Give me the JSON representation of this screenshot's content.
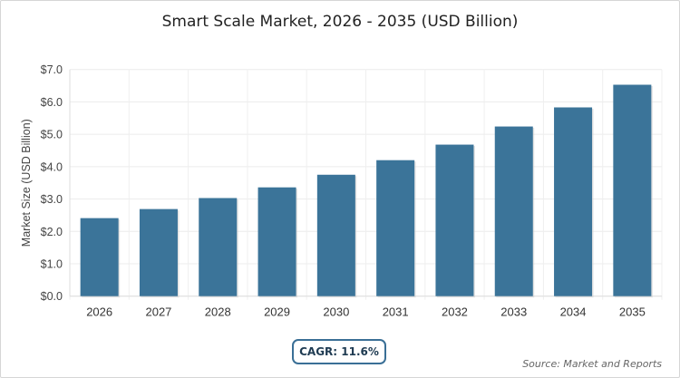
{
  "chart_data": {
    "type": "bar",
    "title": "Smart Scale Market, 2026 - 2035 (USD Billion)",
    "xlabel": "",
    "ylabel": "Market Size (USD Billion)",
    "categories": [
      "2026",
      "2027",
      "2028",
      "2029",
      "2030",
      "2031",
      "2032",
      "2033",
      "2034",
      "2035"
    ],
    "values": [
      2.41,
      2.69,
      3.03,
      3.36,
      3.75,
      4.2,
      4.68,
      5.24,
      5.83,
      6.53
    ],
    "ylim": [
      0,
      7
    ],
    "yticks": [
      "$0.0",
      "$1.0",
      "$2.0",
      "$3.0",
      "$4.0",
      "$5.0",
      "$6.0",
      "$7.0"
    ],
    "grid": true,
    "bar_color": "#3b7499"
  },
  "annotation": {
    "cagr": "CAGR: 11.6%",
    "source": "Source: Market and Reports"
  }
}
